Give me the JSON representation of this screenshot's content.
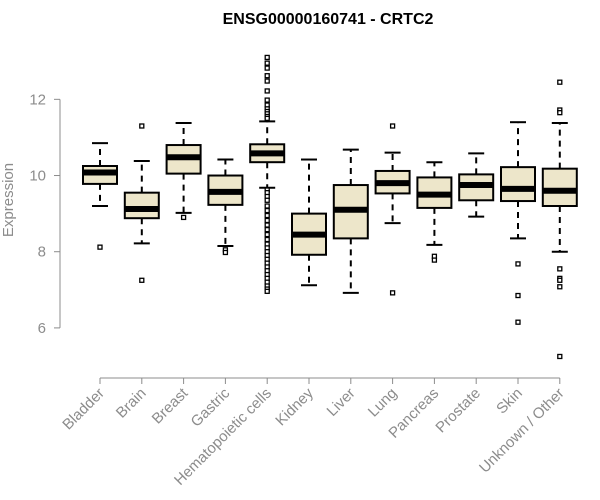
{
  "chart_data": {
    "type": "boxplot",
    "title": "ENSG00000160741 - CRTC2",
    "xlabel": "",
    "ylabel": "Expression",
    "ylim": [
      5.0,
      13.4
    ],
    "yticks": [
      6,
      8,
      10,
      12
    ],
    "box_color": "#ede6ca",
    "categories": [
      "Bladder",
      "Brain",
      "Breast",
      "Gastric",
      "Hematopoietic cells",
      "Kidney",
      "Liver",
      "Lung",
      "Pancreas",
      "Prostate",
      "Skin",
      "Unknown / Other"
    ],
    "boxes": [
      {
        "name": "Bladder",
        "median": 10.08,
        "q1": 9.78,
        "q3": 10.25,
        "whisker_low": 9.2,
        "whisker_high": 10.85,
        "outliers": [
          8.12
        ]
      },
      {
        "name": "Brain",
        "median": 9.12,
        "q1": 8.88,
        "q3": 9.55,
        "whisker_low": 8.22,
        "whisker_high": 10.38,
        "outliers": [
          11.3,
          7.25
        ]
      },
      {
        "name": "Breast",
        "median": 10.48,
        "q1": 10.05,
        "q3": 10.8,
        "whisker_low": 9.02,
        "whisker_high": 11.38,
        "outliers": [
          8.9
        ]
      },
      {
        "name": "Gastric",
        "median": 9.57,
        "q1": 9.23,
        "q3": 10.0,
        "whisker_low": 8.15,
        "whisker_high": 10.42,
        "outliers": [
          8.05,
          7.98
        ]
      },
      {
        "name": "Hematopoietic cells",
        "median": 10.58,
        "q1": 10.35,
        "q3": 10.82,
        "whisker_low": 9.68,
        "whisker_high": 11.42,
        "outliers": [
          13.1,
          12.95,
          12.82,
          12.62,
          12.48,
          12.22,
          11.98,
          11.85,
          11.75,
          11.68,
          11.62,
          11.55,
          11.5,
          9.62,
          9.55,
          9.45,
          9.35,
          9.2,
          9.08,
          8.95,
          8.82,
          8.7,
          8.58,
          8.45,
          8.32,
          8.2,
          8.1,
          8.0,
          7.9,
          7.8,
          7.7,
          7.6,
          7.5,
          7.4,
          7.3,
          7.2,
          7.1,
          7.02,
          6.96
        ]
      },
      {
        "name": "Kidney",
        "median": 8.45,
        "q1": 7.92,
        "q3": 9.0,
        "whisker_low": 7.12,
        "whisker_high": 10.42,
        "outliers": []
      },
      {
        "name": "Liver",
        "median": 9.1,
        "q1": 8.35,
        "q3": 9.75,
        "whisker_low": 6.92,
        "whisker_high": 10.68,
        "outliers": []
      },
      {
        "name": "Lung",
        "median": 9.8,
        "q1": 9.53,
        "q3": 10.12,
        "whisker_low": 8.75,
        "whisker_high": 10.6,
        "outliers": [
          11.3,
          6.92
        ]
      },
      {
        "name": "Pancreas",
        "median": 9.5,
        "q1": 9.15,
        "q3": 9.95,
        "whisker_low": 8.18,
        "whisker_high": 10.35,
        "outliers": [
          7.88,
          7.78
        ]
      },
      {
        "name": "Prostate",
        "median": 9.75,
        "q1": 9.35,
        "q3": 10.03,
        "whisker_low": 8.92,
        "whisker_high": 10.58,
        "outliers": []
      },
      {
        "name": "Skin",
        "median": 9.65,
        "q1": 9.33,
        "q3": 10.22,
        "whisker_low": 8.35,
        "whisker_high": 11.4,
        "outliers": [
          7.68,
          6.85,
          6.15
        ]
      },
      {
        "name": "Unknown / Other",
        "median": 9.6,
        "q1": 9.2,
        "q3": 10.18,
        "whisker_low": 8.0,
        "whisker_high": 11.38,
        "outliers": [
          12.45,
          11.72,
          11.65,
          7.55,
          7.3,
          7.25,
          7.08,
          5.25
        ]
      }
    ]
  }
}
